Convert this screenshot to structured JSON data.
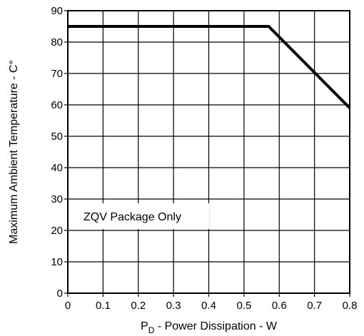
{
  "chart_data": {
    "type": "line",
    "title": "",
    "xlabel": {
      "main": "P",
      "sub": "D",
      "rest": " - Power Dissipation - W"
    },
    "ylabel": "Maximum Ambient Temperature -  C°",
    "xlim": [
      0,
      0.8
    ],
    "ylim": [
      0,
      90
    ],
    "xticks": [
      "0",
      "0.1",
      "0.2",
      "0.3",
      "0.4",
      "0.5",
      "0.6",
      "0.7",
      "0.8"
    ],
    "yticks": [
      "0",
      "10",
      "20",
      "30",
      "40",
      "50",
      "60",
      "70",
      "80",
      "90"
    ],
    "grid": true,
    "annotation": "ZQV Package Only",
    "series": [
      {
        "x": [
          0,
          0.57,
          0.8
        ],
        "y": [
          85,
          85,
          59
        ]
      }
    ]
  }
}
